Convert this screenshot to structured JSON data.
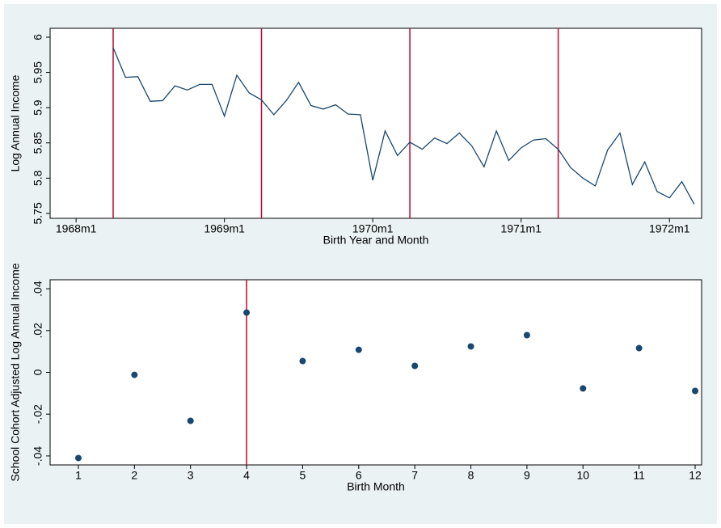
{
  "chart_data": [
    {
      "type": "line",
      "x_label": "Birth Year and Month",
      "y_label": "Log Annual Income",
      "x": [
        99,
        100,
        101,
        102,
        103,
        104,
        105,
        106,
        107,
        108,
        109,
        110,
        111,
        112,
        113,
        114,
        115,
        116,
        117,
        118,
        119,
        120,
        121,
        122,
        123,
        124,
        125,
        126,
        127,
        128,
        129,
        130,
        131,
        132,
        133,
        134,
        135,
        136,
        137,
        138,
        139,
        140,
        141,
        142,
        143,
        144,
        145,
        146
      ],
      "series": [
        {
          "color": "#1a476f",
          "values": [
            5.985,
            5.943,
            5.944,
            5.909,
            5.91,
            5.931,
            5.925,
            5.933,
            5.933,
            5.888,
            5.946,
            5.921,
            5.911,
            5.89,
            5.91,
            5.936,
            5.903,
            5.898,
            5.904,
            5.891,
            5.89,
            5.797,
            5.867,
            5.832,
            5.851,
            5.841,
            5.857,
            5.849,
            5.864,
            5.846,
            5.816,
            5.867,
            5.825,
            5.843,
            5.854,
            5.856,
            5.841,
            5.815,
            5.8,
            5.789,
            5.84,
            5.864,
            5.791,
            5.823,
            5.781,
            5.772,
            5.795,
            5.763
          ]
        }
      ],
      "xlim": [
        93.9,
        146.6
      ],
      "xticks": [
        {
          "value": 96,
          "label": "1968m1"
        },
        {
          "value": 108,
          "label": "1969m1"
        },
        {
          "value": 120,
          "label": "1970m1"
        },
        {
          "value": 132,
          "label": "1971m1"
        },
        {
          "value": 144,
          "label": "1972m1"
        }
      ],
      "ylim": [
        5.743,
        6.0126
      ],
      "yticks": [
        5.75,
        5.8,
        5.85,
        5.9,
        5.95,
        6
      ],
      "xlines": [
        99,
        111,
        123,
        135
      ],
      "xline_color": "#c10534"
    },
    {
      "type": "scatter",
      "x_label": "Birth Month",
      "y_label": "School Cohort Adjusted Log Annual Income",
      "x": [
        1,
        2,
        3,
        4,
        5,
        6,
        7,
        8,
        9,
        10,
        11,
        12
      ],
      "series": [
        {
          "color": "#1a476f",
          "values": [
            -0.041,
            -0.0012,
            -0.0232,
            0.0286,
            0.0054,
            0.0108,
            0.0031,
            0.0124,
            0.0178,
            -0.0077,
            0.0116,
            -0.0089
          ]
        }
      ],
      "xlim": [
        0.496,
        12.115
      ],
      "xticks": [
        1,
        2,
        3,
        4,
        5,
        6,
        7,
        8,
        9,
        10,
        11,
        12
      ],
      "ylim": [
        -0.0443,
        0.0443
      ],
      "yticks": [
        {
          "value": -0.04,
          "label": "-.04"
        },
        {
          "value": -0.02,
          "label": "-.02"
        },
        0,
        {
          "value": 0.02,
          "label": ".02"
        },
        {
          "value": 0.04,
          "label": ".04"
        }
      ],
      "xlines": [
        4
      ],
      "xline_color": "#c10534"
    }
  ]
}
